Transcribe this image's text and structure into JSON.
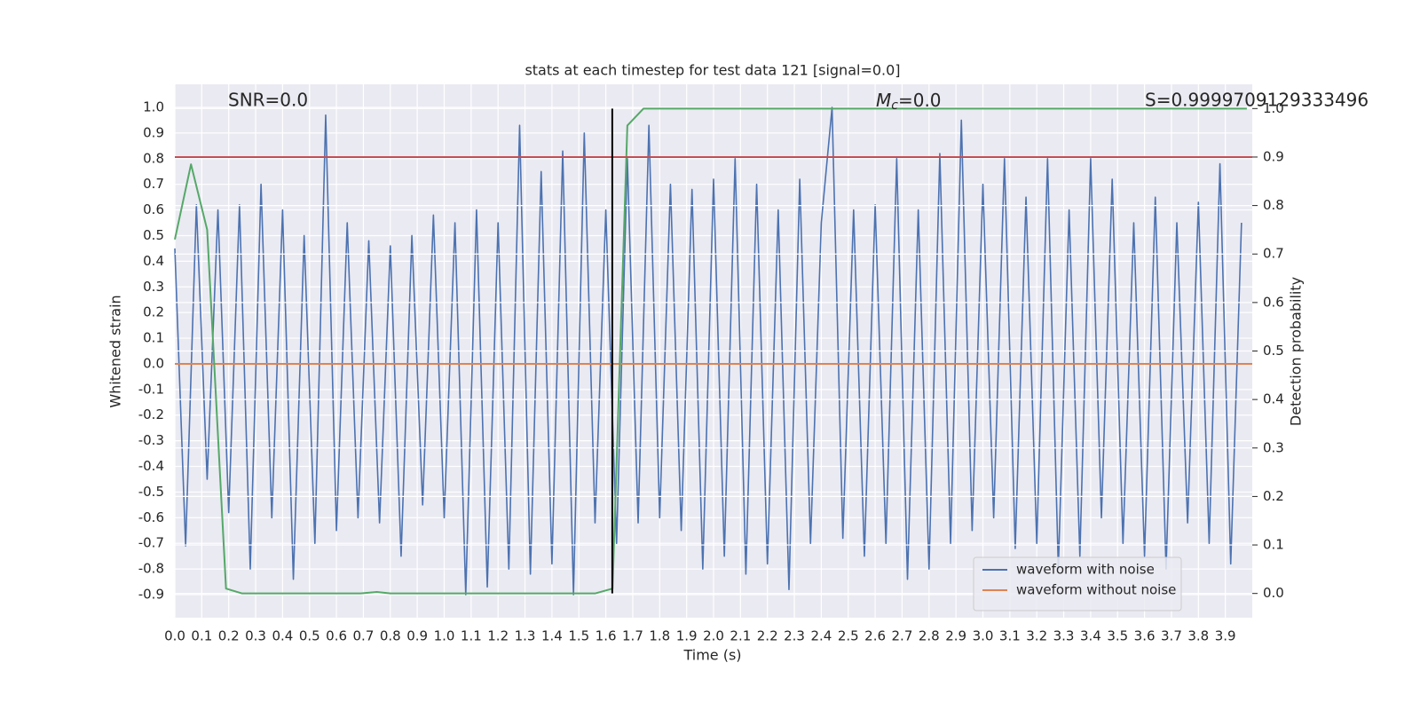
{
  "chart_data": {
    "type": "line",
    "title": "stats at each timestep for test data 121 [signal=0.0]",
    "xlabel": "Time (s)",
    "ylabel": "Whitened strain",
    "y2label": "Detection probability",
    "xlim": [
      0,
      4.0
    ],
    "ylim": [
      -0.99,
      1.09
    ],
    "y2lim": [
      -0.05,
      1.05
    ],
    "grid": true,
    "legend": "lower right",
    "xticks": [
      {
        "value": 0,
        "label": "0.0"
      },
      0.1,
      0.2,
      0.3,
      0.4,
      0.5,
      0.6,
      0.7,
      0.8,
      0.9,
      {
        "value": 1,
        "label": "1.0"
      },
      1.1,
      1.2,
      1.3,
      1.4,
      1.5,
      1.6,
      1.7,
      1.8,
      1.9,
      {
        "value": 2,
        "label": "2.0"
      },
      2.1,
      2.2,
      2.3,
      2.4,
      2.5,
      2.6,
      2.7,
      2.8,
      2.9,
      {
        "value": 3,
        "label": "3.0"
      },
      3.1,
      3.2,
      3.3,
      3.4,
      3.5,
      3.6,
      3.7,
      3.8,
      3.9
    ],
    "yticks": [
      -0.9,
      -0.8,
      -0.7,
      -0.6,
      -0.5,
      -0.4,
      -0.3,
      -0.2,
      -0.1,
      {
        "value": 0,
        "label": "0.0"
      },
      0.1,
      0.2,
      0.3,
      0.4,
      0.5,
      0.6,
      0.7,
      0.8,
      0.9,
      {
        "value": 1,
        "label": "1.0"
      }
    ],
    "y2ticks": [
      {
        "value": 0,
        "label": "0.0"
      },
      0.1,
      0.2,
      0.3,
      0.4,
      0.5,
      0.6,
      0.7,
      0.8,
      0.9,
      {
        "value": 1,
        "label": "1.0"
      }
    ],
    "annotations": {
      "snr": "SNR=0.0",
      "mc": {
        "symbol": "M",
        "subscript": "c",
        "rest": "=0.0"
      },
      "s": "S=0.9999709129333496"
    },
    "series": [
      {
        "name": "waveform with noise",
        "color": "#4c72b0",
        "x": [
          0,
          0.04,
          0.08,
          0.12,
          0.16,
          0.2,
          0.24,
          0.28,
          0.32,
          0.36,
          0.4,
          0.44,
          0.48,
          0.52,
          0.56,
          0.6,
          0.64,
          0.68,
          0.72,
          0.76,
          0.8,
          0.84,
          0.88,
          0.92,
          0.96,
          1,
          1.04,
          1.08,
          1.12,
          1.16,
          1.2,
          1.24,
          1.28,
          1.32,
          1.36,
          1.4,
          1.44,
          1.48,
          1.52,
          1.56,
          1.6,
          1.64,
          1.68,
          1.72,
          1.76,
          1.8,
          1.84,
          1.88,
          1.92,
          1.96,
          2,
          2.04,
          2.08,
          2.12,
          2.16,
          2.2,
          2.24,
          2.28,
          2.32,
          2.36,
          2.4,
          2.44,
          2.48,
          2.52,
          2.56,
          2.6,
          2.64,
          2.68,
          2.72,
          2.76,
          2.8,
          2.84,
          2.88,
          2.92,
          2.96,
          3,
          3.04,
          3.08,
          3.12,
          3.16,
          3.2,
          3.24,
          3.28,
          3.32,
          3.36,
          3.4,
          3.44,
          3.48,
          3.52,
          3.56,
          3.6,
          3.64,
          3.68,
          3.72,
          3.76,
          3.8,
          3.84,
          3.88,
          3.92,
          3.96
        ],
        "values": [
          0.45,
          -0.71,
          0.62,
          -0.45,
          0.6,
          -0.58,
          0.62,
          -0.8,
          0.7,
          -0.6,
          0.6,
          -0.84,
          0.5,
          -0.7,
          0.97,
          -0.65,
          0.55,
          -0.6,
          0.48,
          -0.62,
          0.46,
          -0.75,
          0.5,
          -0.55,
          0.58,
          -0.6,
          0.55,
          -0.9,
          0.6,
          -0.87,
          0.55,
          -0.8,
          0.93,
          -0.82,
          0.75,
          -0.78,
          0.83,
          -0.9,
          0.9,
          -0.62,
          0.6,
          -0.7,
          0.8,
          -0.62,
          0.93,
          -0.6,
          0.7,
          -0.65,
          0.68,
          -0.8,
          0.72,
          -0.75,
          0.8,
          -0.82,
          0.7,
          -0.78,
          0.6,
          -0.88,
          0.72,
          -0.7,
          0.55,
          1.0,
          -0.68,
          0.6,
          -0.75,
          0.62,
          -0.7,
          0.8,
          -0.84,
          0.6,
          -0.8,
          0.82,
          -0.7,
          0.95,
          -0.65,
          0.7,
          -0.6,
          0.8,
          -0.72,
          0.65,
          -0.7,
          0.8,
          -0.8,
          0.6,
          -0.75,
          0.8,
          -0.6,
          0.72,
          -0.7,
          0.55,
          -0.75,
          0.65,
          -0.8,
          0.55,
          -0.62,
          0.63,
          -0.7,
          0.78,
          -0.78,
          0.55
        ]
      },
      {
        "name": "waveform without noise",
        "color": "#dd8452",
        "x": [
          0,
          4.0
        ],
        "values": [
          0,
          0
        ]
      },
      {
        "color": "#55a868",
        "axis": "y2",
        "x": [
          0,
          0.06,
          0.12,
          0.19,
          0.25,
          0.69,
          0.75,
          0.8,
          1.56,
          1.625,
          1.68,
          1.74,
          3.98
        ],
        "values": [
          0.73,
          0.885,
          0.75,
          0.01,
          0,
          0,
          0.003,
          0,
          0,
          0.01,
          0.965,
          1,
          1
        ]
      },
      {
        "color": "#c44e52",
        "axis": "y2",
        "x": [
          0,
          4.0
        ],
        "values": [
          0.9,
          0.9
        ]
      },
      {
        "color": "#000000",
        "axis": "y2",
        "x": [
          1.624,
          1.624
        ],
        "values": [
          0,
          1
        ]
      }
    ]
  }
}
